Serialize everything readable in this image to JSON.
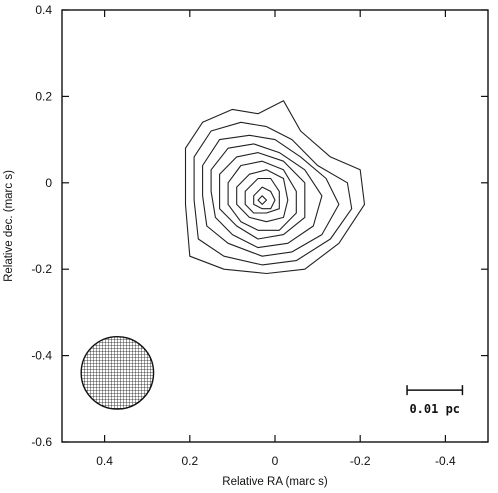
{
  "chart_data": {
    "type": "contour",
    "xlabel": "Relative RA (marc s)",
    "ylabel": "Relative dec. (marc s)",
    "xlim": [
      0.5,
      -0.5
    ],
    "ylim": [
      -0.6,
      0.4
    ],
    "x_ticks": [
      0.4,
      0.2,
      0,
      -0.2,
      -0.4
    ],
    "y_ticks": [
      0.4,
      0.2,
      0,
      -0.2,
      -0.4,
      -0.6
    ],
    "x_tick_labels": [
      "0.4",
      "0.2",
      "0",
      "-0.2",
      "-0.4"
    ],
    "y_tick_labels": [
      "0.4",
      "0.2",
      "0",
      "-0.2",
      "-0.4",
      "-0.6"
    ],
    "peak": {
      "x": 0.04,
      "y": -0.05
    },
    "contour_levels": [
      [
        [
          0.21,
          0.08
        ],
        [
          0.17,
          0.14
        ],
        [
          0.1,
          0.17
        ],
        [
          0.04,
          0.16
        ],
        [
          -0.02,
          0.19
        ],
        [
          -0.06,
          0.12
        ],
        [
          -0.13,
          0.06
        ],
        [
          -0.2,
          0.03
        ],
        [
          -0.21,
          -0.05
        ],
        [
          -0.15,
          -0.14
        ],
        [
          -0.07,
          -0.2
        ],
        [
          0.02,
          -0.21
        ],
        [
          0.12,
          -0.2
        ],
        [
          0.2,
          -0.17
        ],
        [
          0.21,
          -0.05
        ]
      ],
      [
        [
          0.19,
          0.06
        ],
        [
          0.15,
          0.12
        ],
        [
          0.08,
          0.14
        ],
        [
          0.02,
          0.13
        ],
        [
          -0.04,
          0.1
        ],
        [
          -0.1,
          0.04
        ],
        [
          -0.17,
          0.0
        ],
        [
          -0.18,
          -0.06
        ],
        [
          -0.13,
          -0.13
        ],
        [
          -0.05,
          -0.18
        ],
        [
          0.03,
          -0.19
        ],
        [
          0.12,
          -0.17
        ],
        [
          0.18,
          -0.13
        ],
        [
          0.19,
          -0.04
        ]
      ],
      [
        [
          0.17,
          0.04
        ],
        [
          0.13,
          0.1
        ],
        [
          0.06,
          0.11
        ],
        [
          0.0,
          0.1
        ],
        [
          -0.06,
          0.06
        ],
        [
          -0.12,
          0.01
        ],
        [
          -0.15,
          -0.05
        ],
        [
          -0.11,
          -0.12
        ],
        [
          -0.04,
          -0.16
        ],
        [
          0.03,
          -0.17
        ],
        [
          0.11,
          -0.14
        ],
        [
          0.16,
          -0.1
        ],
        [
          0.17,
          -0.03
        ]
      ],
      [
        [
          0.15,
          0.03
        ],
        [
          0.11,
          0.08
        ],
        [
          0.05,
          0.09
        ],
        [
          -0.01,
          0.07
        ],
        [
          -0.07,
          0.03
        ],
        [
          -0.11,
          -0.03
        ],
        [
          -0.09,
          -0.1
        ],
        [
          -0.03,
          -0.14
        ],
        [
          0.04,
          -0.15
        ],
        [
          0.1,
          -0.12
        ],
        [
          0.14,
          -0.08
        ],
        [
          0.15,
          -0.02
        ]
      ],
      [
        [
          0.13,
          0.02
        ],
        [
          0.09,
          0.06
        ],
        [
          0.04,
          0.07
        ],
        [
          -0.02,
          0.05
        ],
        [
          -0.07,
          0.0
        ],
        [
          -0.07,
          -0.08
        ],
        [
          -0.02,
          -0.12
        ],
        [
          0.04,
          -0.13
        ],
        [
          0.09,
          -0.1
        ],
        [
          0.13,
          -0.06
        ],
        [
          0.13,
          -0.01
        ]
      ],
      [
        [
          0.11,
          0.0
        ],
        [
          0.08,
          0.04
        ],
        [
          0.03,
          0.05
        ],
        [
          -0.02,
          0.03
        ],
        [
          -0.05,
          -0.02
        ],
        [
          -0.05,
          -0.07
        ],
        [
          -0.01,
          -0.11
        ],
        [
          0.04,
          -0.11
        ],
        [
          0.08,
          -0.09
        ],
        [
          0.11,
          -0.05
        ]
      ],
      [
        [
          0.09,
          -0.01
        ],
        [
          0.06,
          0.02
        ],
        [
          0.02,
          0.03
        ],
        [
          -0.02,
          0.01
        ],
        [
          -0.03,
          -0.04
        ],
        [
          -0.02,
          -0.08
        ],
        [
          0.02,
          -0.09
        ],
        [
          0.06,
          -0.08
        ],
        [
          0.09,
          -0.05
        ]
      ],
      [
        [
          0.07,
          -0.02
        ],
        [
          0.04,
          0.01
        ],
        [
          0.01,
          0.01
        ],
        [
          -0.01,
          -0.02
        ],
        [
          -0.01,
          -0.06
        ],
        [
          0.02,
          -0.07
        ],
        [
          0.05,
          -0.07
        ],
        [
          0.07,
          -0.05
        ]
      ],
      [
        [
          0.05,
          -0.03
        ],
        [
          0.03,
          -0.01
        ],
        [
          0.01,
          -0.02
        ],
        [
          0.0,
          -0.04
        ],
        [
          0.01,
          -0.06
        ],
        [
          0.03,
          -0.06
        ],
        [
          0.05,
          -0.05
        ]
      ],
      [
        [
          0.04,
          -0.04
        ],
        [
          0.03,
          -0.03
        ],
        [
          0.02,
          -0.04
        ],
        [
          0.03,
          -0.05
        ]
      ]
    ],
    "beam": {
      "x": 0.37,
      "y": -0.44,
      "radius": 0.085
    },
    "scale_bar": {
      "label": "0.01 pc",
      "x_start": -0.31,
      "x_end": -0.44,
      "y": -0.48
    }
  }
}
